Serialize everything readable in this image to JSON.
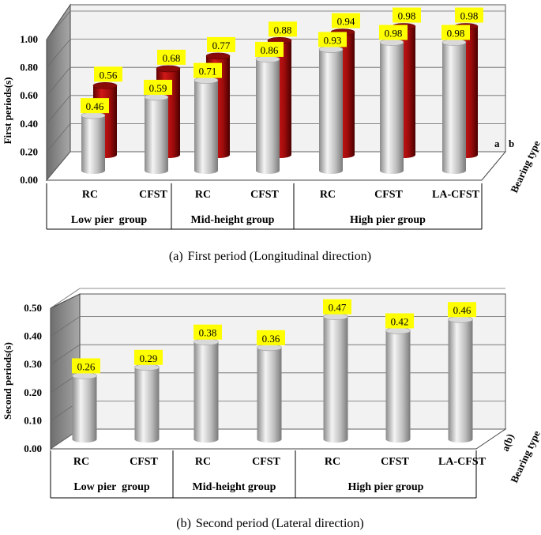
{
  "chart_data": [
    {
      "type": "bar",
      "title": "First period (Longitudinal direction)",
      "caption_tag": "(a)",
      "ylabel": "First periods(s)",
      "zlabel": "Bearing type",
      "ylim": [
        0,
        1.0
      ],
      "yticks": [
        "0.00",
        "0.20",
        "0.40",
        "0.60",
        "0.80",
        "1.00"
      ],
      "categories": [
        "RC",
        "CFST",
        "RC",
        "CFST",
        "RC",
        "CFST",
        "LA-CFST"
      ],
      "groups": [
        {
          "label": "Low pier  group",
          "count": 2
        },
        {
          "label": "Mid-height group",
          "count": 2
        },
        {
          "label": "High pier group",
          "count": 3
        }
      ],
      "series": [
        {
          "name": "a",
          "values": [
            0.46,
            0.59,
            0.71,
            0.86,
            0.93,
            0.98,
            0.98
          ],
          "labels": [
            "0.46",
            "0.59",
            "0.71",
            "0.86",
            "0.93",
            "0.98",
            "0.98"
          ],
          "color": "#b8b8b8"
        },
        {
          "name": "b",
          "values": [
            0.56,
            0.68,
            0.77,
            0.88,
            0.94,
            0.98,
            0.98
          ],
          "labels": [
            "0.56",
            "0.68",
            "0.77",
            "0.88",
            "0.94",
            "0.98",
            "0.98"
          ],
          "color": "#a50d0d"
        }
      ]
    },
    {
      "type": "bar",
      "title": "Second period (Lateral direction)",
      "caption_tag": "(b)",
      "ylabel": "Second periods(s)",
      "zlabel": "Bearing type",
      "ylim": [
        0,
        0.5
      ],
      "yticks": [
        "0.00",
        "0.10",
        "0.20",
        "0.30",
        "0.40",
        "0.50"
      ],
      "categories": [
        "RC",
        "CFST",
        "RC",
        "CFST",
        "RC",
        "CFST",
        "LA-CFST"
      ],
      "groups": [
        {
          "label": "Low pier  group",
          "count": 2
        },
        {
          "label": "Mid-height group",
          "count": 2
        },
        {
          "label": "High pier group",
          "count": 3
        }
      ],
      "series": [
        {
          "name": "a(b)",
          "values": [
            0.26,
            0.29,
            0.38,
            0.36,
            0.47,
            0.42,
            0.46
          ],
          "labels": [
            "0.26",
            "0.29",
            "0.38",
            "0.36",
            "0.47",
            "0.42",
            "0.46"
          ],
          "color": "#b8b8b8"
        }
      ]
    }
  ],
  "colors": {
    "label_bg": "#ffff00",
    "wall": "#f2f2f2",
    "side_wall": "#8c8c8c"
  }
}
